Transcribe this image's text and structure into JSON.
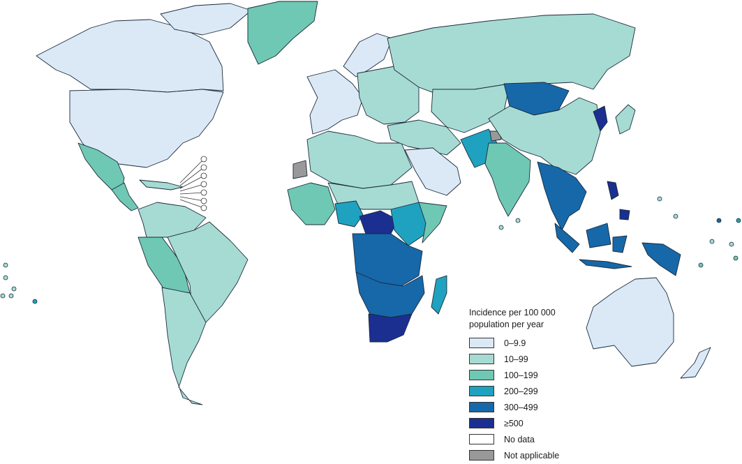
{
  "legend": {
    "title": "Incidence per 100 000 population per year",
    "classes": [
      {
        "label": "0–9.9",
        "color": "#dbe9f6"
      },
      {
        "label": "10–99",
        "color": "#a6dbd3"
      },
      {
        "label": "100–199",
        "color": "#6fc8b4"
      },
      {
        "label": "200–299",
        "color": "#1fa2bf"
      },
      {
        "label": "300–499",
        "color": "#1668a9"
      },
      {
        "label": "≥500",
        "color": "#1b2f91"
      },
      {
        "label": "No data",
        "color": "#ffffff"
      },
      {
        "label": "Not applicable",
        "color": "#999999"
      }
    ]
  },
  "regions": [
    {
      "name": "alaska-canada",
      "class": 0
    },
    {
      "name": "canadian-arctic-islands",
      "class": 0
    },
    {
      "name": "united-states",
      "class": 0
    },
    {
      "name": "greenland",
      "class": 2
    },
    {
      "name": "mexico",
      "class": 2
    },
    {
      "name": "central-america",
      "class": 2
    },
    {
      "name": "caribbean",
      "class": 1
    },
    {
      "name": "south-america-north",
      "class": 1
    },
    {
      "name": "peru-bolivia",
      "class": 2
    },
    {
      "name": "brazil",
      "class": 1
    },
    {
      "name": "southern-cone",
      "class": 1
    },
    {
      "name": "western-europe",
      "class": 0
    },
    {
      "name": "scandinavia",
      "class": 0
    },
    {
      "name": "eastern-europe",
      "class": 1
    },
    {
      "name": "russia",
      "class": 1
    },
    {
      "name": "north-africa",
      "class": 1
    },
    {
      "name": "western-sahara",
      "class": 7
    },
    {
      "name": "west-africa",
      "class": 2
    },
    {
      "name": "sahel",
      "class": 1
    },
    {
      "name": "nigeria",
      "class": 3
    },
    {
      "name": "central-africa",
      "class": 4
    },
    {
      "name": "cameroon-car",
      "class": 5
    },
    {
      "name": "ethiopia-kenya",
      "class": 3
    },
    {
      "name": "somalia",
      "class": 2
    },
    {
      "name": "southern-africa",
      "class": 4
    },
    {
      "name": "south-africa",
      "class": 5
    },
    {
      "name": "madagascar",
      "class": 3
    },
    {
      "name": "middle-east",
      "class": 1
    },
    {
      "name": "arabian-peninsula",
      "class": 0
    },
    {
      "name": "central-asia",
      "class": 1
    },
    {
      "name": "pakistan-afghanistan",
      "class": 3
    },
    {
      "name": "india",
      "class": 2
    },
    {
      "name": "mongolia",
      "class": 4
    },
    {
      "name": "china",
      "class": 1
    },
    {
      "name": "korea",
      "class": 5
    },
    {
      "name": "japan",
      "class": 1
    },
    {
      "name": "southeast-asia",
      "class": 4
    },
    {
      "name": "philippines",
      "class": 5
    },
    {
      "name": "indonesia",
      "class": 4
    },
    {
      "name": "papua-new-guinea",
      "class": 4
    },
    {
      "name": "australia",
      "class": 0
    },
    {
      "name": "new-zealand",
      "class": 0
    },
    {
      "name": "kashmir",
      "class": 7
    }
  ]
}
